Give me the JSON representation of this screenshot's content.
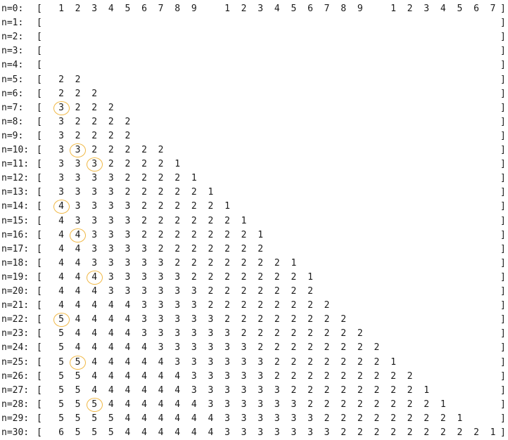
{
  "bracket_open": "[",
  "bracket_close": "]",
  "rows": [
    {
      "label": "n=0:",
      "cells": [
        "1",
        "2",
        "3",
        "4",
        "5",
        "6",
        "7",
        "8",
        "9",
        "",
        "1",
        "2",
        "3",
        "4",
        "5",
        "6",
        "7",
        "8",
        "9",
        "",
        "1",
        "2",
        "3",
        "4",
        "5",
        "6",
        "7"
      ]
    },
    {
      "label": "n=1:",
      "cells": []
    },
    {
      "label": "n=2:",
      "cells": []
    },
    {
      "label": "n=3:",
      "cells": []
    },
    {
      "label": "n=4:",
      "cells": []
    },
    {
      "label": "n=5:",
      "cells": [
        "2",
        "2"
      ]
    },
    {
      "label": "n=6:",
      "cells": [
        "2",
        "2",
        "2"
      ]
    },
    {
      "label": "n=7:",
      "cells": [
        "3",
        "2",
        "2",
        "2"
      ],
      "circled": 0
    },
    {
      "label": "n=8:",
      "cells": [
        "3",
        "2",
        "2",
        "2",
        "2"
      ]
    },
    {
      "label": "n=9:",
      "cells": [
        "3",
        "2",
        "2",
        "2",
        "2"
      ]
    },
    {
      "label": "n=10:",
      "cells": [
        "3",
        "3",
        "2",
        "2",
        "2",
        "2",
        "2"
      ],
      "circled": 1
    },
    {
      "label": "n=11:",
      "cells": [
        "3",
        "3",
        "3",
        "2",
        "2",
        "2",
        "2",
        "1"
      ],
      "circled": 2
    },
    {
      "label": "n=12:",
      "cells": [
        "3",
        "3",
        "3",
        "3",
        "2",
        "2",
        "2",
        "2",
        "1"
      ]
    },
    {
      "label": "n=13:",
      "cells": [
        "3",
        "3",
        "3",
        "3",
        "2",
        "2",
        "2",
        "2",
        "2",
        "1"
      ]
    },
    {
      "label": "n=14:",
      "cells": [
        "4",
        "3",
        "3",
        "3",
        "3",
        "2",
        "2",
        "2",
        "2",
        "2",
        "1"
      ],
      "circled": 0
    },
    {
      "label": "n=15:",
      "cells": [
        "4",
        "3",
        "3",
        "3",
        "3",
        "2",
        "2",
        "2",
        "2",
        "2",
        "2",
        "1"
      ]
    },
    {
      "label": "n=16:",
      "cells": [
        "4",
        "4",
        "3",
        "3",
        "3",
        "2",
        "2",
        "2",
        "2",
        "2",
        "2",
        "2",
        "1"
      ],
      "circled": 1
    },
    {
      "label": "n=17:",
      "cells": [
        "4",
        "4",
        "3",
        "3",
        "3",
        "3",
        "2",
        "2",
        "2",
        "2",
        "2",
        "2",
        "2"
      ]
    },
    {
      "label": "n=18:",
      "cells": [
        "4",
        "4",
        "3",
        "3",
        "3",
        "3",
        "3",
        "2",
        "2",
        "2",
        "2",
        "2",
        "2",
        "2",
        "1"
      ]
    },
    {
      "label": "n=19:",
      "cells": [
        "4",
        "4",
        "4",
        "3",
        "3",
        "3",
        "3",
        "3",
        "2",
        "2",
        "2",
        "2",
        "2",
        "2",
        "2",
        "1"
      ],
      "circled": 2
    },
    {
      "label": "n=20:",
      "cells": [
        "4",
        "4",
        "4",
        "3",
        "3",
        "3",
        "3",
        "3",
        "3",
        "2",
        "2",
        "2",
        "2",
        "2",
        "2",
        "2"
      ]
    },
    {
      "label": "n=21:",
      "cells": [
        "4",
        "4",
        "4",
        "4",
        "4",
        "3",
        "3",
        "3",
        "3",
        "2",
        "2",
        "2",
        "2",
        "2",
        "2",
        "2",
        "2"
      ]
    },
    {
      "label": "n=22:",
      "cells": [
        "5",
        "4",
        "4",
        "4",
        "4",
        "3",
        "3",
        "3",
        "3",
        "3",
        "2",
        "2",
        "2",
        "2",
        "2",
        "2",
        "2",
        "2"
      ],
      "circled": 0
    },
    {
      "label": "n=23:",
      "cells": [
        "5",
        "4",
        "4",
        "4",
        "4",
        "3",
        "3",
        "3",
        "3",
        "3",
        "3",
        "2",
        "2",
        "2",
        "2",
        "2",
        "2",
        "2",
        "2"
      ]
    },
    {
      "label": "n=24:",
      "cells": [
        "5",
        "4",
        "4",
        "4",
        "4",
        "4",
        "3",
        "3",
        "3",
        "3",
        "3",
        "3",
        "2",
        "2",
        "2",
        "2",
        "2",
        "2",
        "2",
        "2"
      ]
    },
    {
      "label": "n=25:",
      "cells": [
        "5",
        "5",
        "4",
        "4",
        "4",
        "4",
        "4",
        "3",
        "3",
        "3",
        "3",
        "3",
        "3",
        "2",
        "2",
        "2",
        "2",
        "2",
        "2",
        "2",
        "1"
      ],
      "circled": 1
    },
    {
      "label": "n=26:",
      "cells": [
        "5",
        "5",
        "4",
        "4",
        "4",
        "4",
        "4",
        "4",
        "3",
        "3",
        "3",
        "3",
        "3",
        "2",
        "2",
        "2",
        "2",
        "2",
        "2",
        "2",
        "2",
        "2"
      ]
    },
    {
      "label": "n=27:",
      "cells": [
        "5",
        "5",
        "4",
        "4",
        "4",
        "4",
        "4",
        "4",
        "3",
        "3",
        "3",
        "3",
        "3",
        "3",
        "2",
        "2",
        "2",
        "2",
        "2",
        "2",
        "2",
        "2",
        "1"
      ]
    },
    {
      "label": "n=28:",
      "cells": [
        "5",
        "5",
        "5",
        "4",
        "4",
        "4",
        "4",
        "4",
        "4",
        "3",
        "3",
        "3",
        "3",
        "3",
        "3",
        "2",
        "2",
        "2",
        "2",
        "2",
        "2",
        "2",
        "2",
        "1"
      ],
      "circled": 2
    },
    {
      "label": "n=29:",
      "cells": [
        "5",
        "5",
        "5",
        "5",
        "4",
        "4",
        "4",
        "4",
        "4",
        "4",
        "3",
        "3",
        "3",
        "3",
        "3",
        "3",
        "2",
        "2",
        "2",
        "2",
        "2",
        "2",
        "2",
        "2",
        "1"
      ]
    },
    {
      "label": "n=30:",
      "cells": [
        "6",
        "5",
        "5",
        "5",
        "4",
        "4",
        "4",
        "4",
        "4",
        "4",
        "3",
        "3",
        "3",
        "3",
        "3",
        "3",
        "3",
        "2",
        "2",
        "2",
        "2",
        "2",
        "2",
        "2",
        "2",
        "2",
        "1"
      ]
    }
  ],
  "highlight_color": "#f0b845"
}
